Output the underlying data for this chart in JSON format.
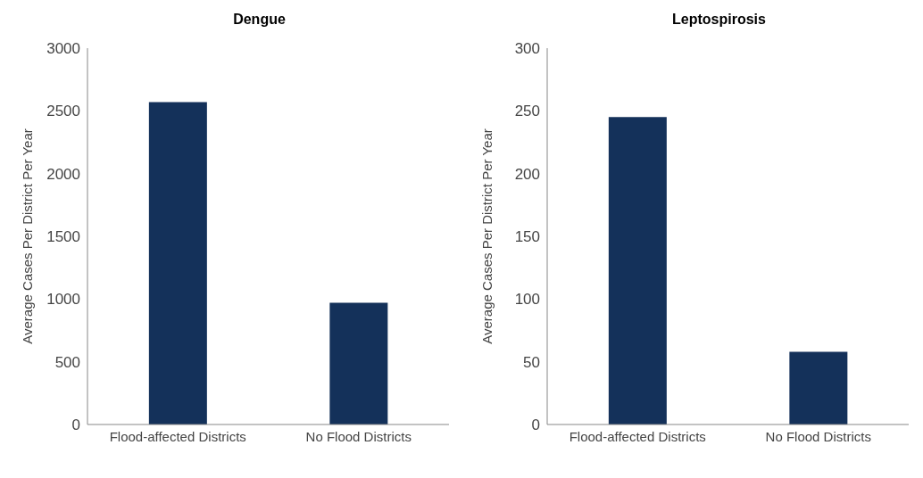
{
  "chart_data": [
    {
      "type": "bar",
      "title": "Dengue",
      "ylabel": "Average Cases Per District Per Year",
      "categories": [
        "Flood-affected Districts",
        "No Flood Districts"
      ],
      "values": [
        2570,
        970
      ],
      "color": "#14315a",
      "ylim": [
        0,
        3000
      ],
      "yticks": [
        0,
        500,
        1000,
        1500,
        2000,
        2500,
        3000
      ],
      "grid": false,
      "legend": false
    },
    {
      "type": "bar",
      "title": "Leptospirosis",
      "ylabel": "Average Cases Per District Per Year",
      "categories": [
        "Flood-affected Districts",
        "No Flood Districts"
      ],
      "values": [
        245,
        58
      ],
      "color": "#14315a",
      "ylim": [
        0,
        300
      ],
      "yticks": [
        0,
        50,
        100,
        150,
        200,
        250,
        300
      ],
      "grid": false,
      "legend": false
    }
  ]
}
